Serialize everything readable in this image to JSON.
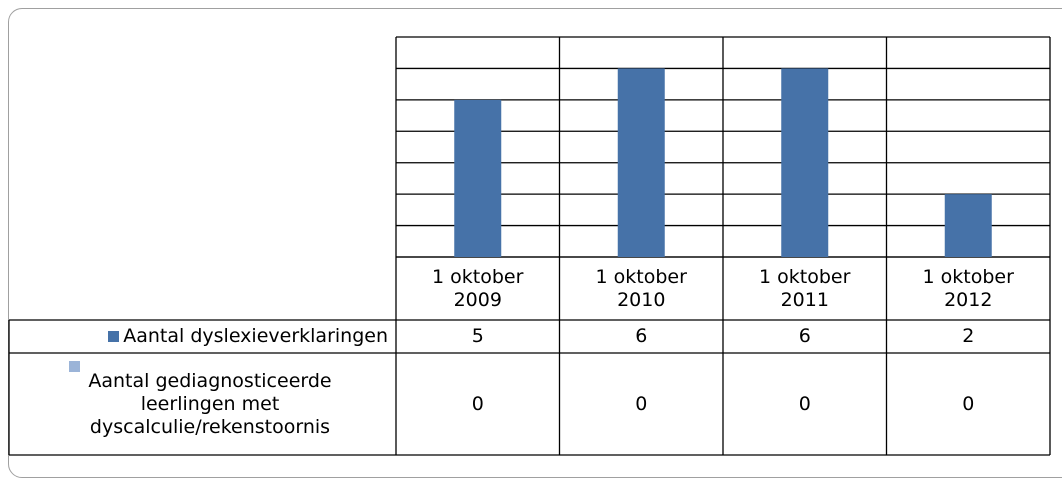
{
  "chart_data": {
    "type": "bar",
    "categories": [
      "1 oktober 2009",
      "1 oktober 2010",
      "1 oktober 2011",
      "1 oktober 2012"
    ],
    "series": [
      {
        "name": "Aantal dyslexieverklaringen",
        "color": "#4672a8",
        "values": [
          5,
          6,
          6,
          2
        ]
      },
      {
        "name": "Aantal gediagnosticeerde leerlingen met dyscalculie/rekenstoornis",
        "color": "#9bb4d8",
        "values": [
          0,
          0,
          0,
          0
        ]
      }
    ],
    "ylim": [
      0,
      7
    ],
    "yticks": [
      0,
      1,
      2,
      3,
      4,
      5,
      6,
      7
    ],
    "grid": true
  }
}
